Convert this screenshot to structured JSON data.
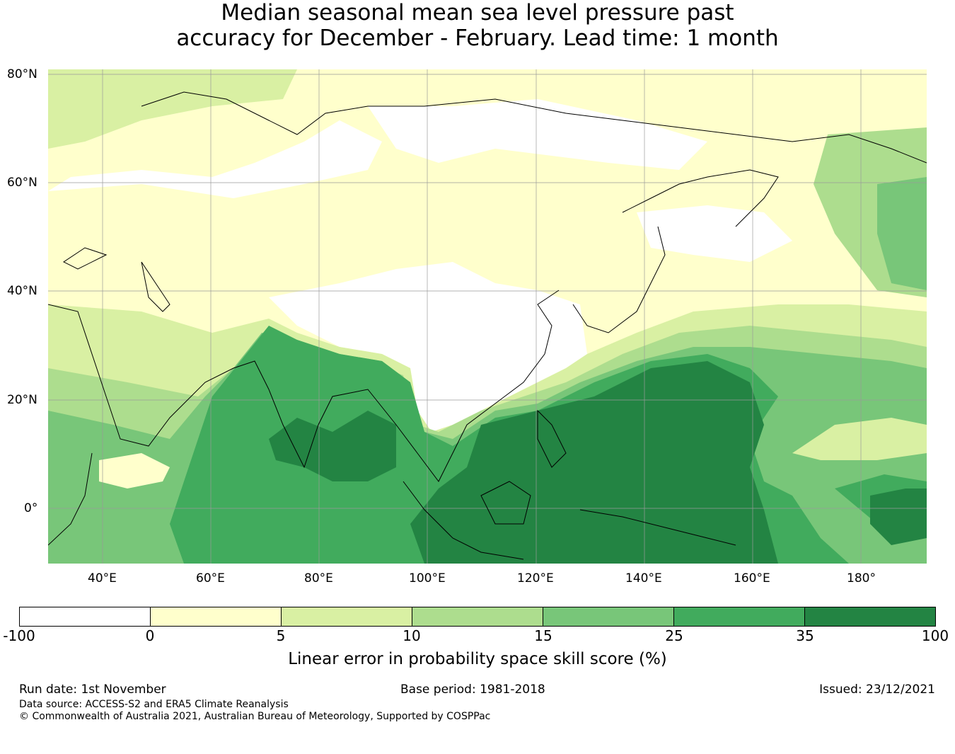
{
  "title": {
    "line1": "Median seasonal mean sea level pressure past",
    "line2": "accuracy for December - February. Lead time: 1 month"
  },
  "map": {
    "lat_labels": [
      "80°N",
      "60°N",
      "40°N",
      "20°N",
      "0°"
    ],
    "lon_labels": [
      "40°E",
      "60°E",
      "80°E",
      "100°E",
      "120°E",
      "140°E",
      "160°E",
      "180°"
    ],
    "extent": {
      "lon": [
        30,
        192
      ],
      "lat": [
        -10,
        81
      ]
    },
    "gridlines": true
  },
  "colorbar": {
    "ticks": [
      "-100",
      "0",
      "5",
      "10",
      "15",
      "25",
      "35",
      "100"
    ],
    "colors": [
      "#ffffff",
      "#ffffcc",
      "#d9f0a3",
      "#addd8e",
      "#78c679",
      "#41ab5d",
      "#238443"
    ],
    "label": "Linear error in probability space skill score (%)"
  },
  "footer": {
    "run_date": "Run date: 1st November",
    "base_period": "Base period: 1981-2018",
    "issued": "Issued: 23/12/2021",
    "data_source": "Data source: ACCESS-S2 and ERA5 Climate Reanalysis",
    "copyright": "© Commonwealth of Australia 2021, Australian Bureau of Meteorology, Supported by COSPPac"
  }
}
